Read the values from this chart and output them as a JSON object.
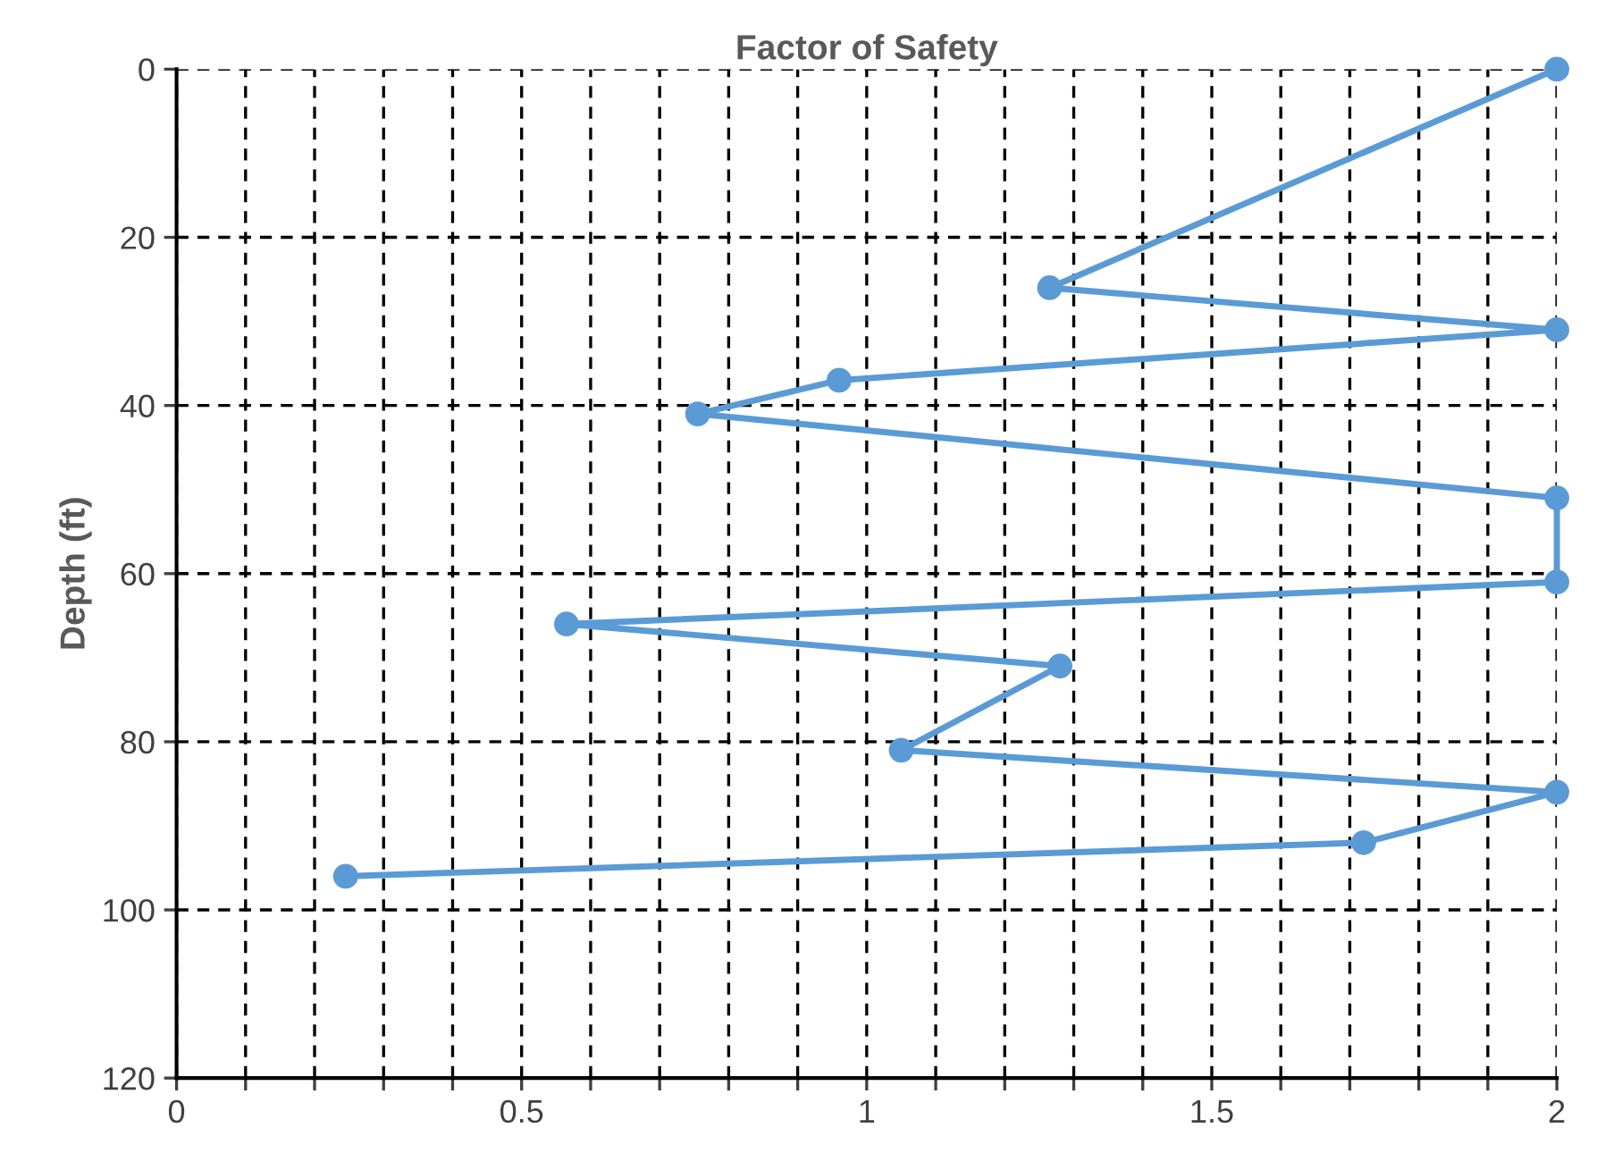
{
  "chart_data": {
    "type": "line",
    "title": "Factor of Safety",
    "ylabel": "Depth (ft)",
    "x": [
      2,
      1.265,
      2,
      0.96,
      0.755,
      2,
      2,
      0.565,
      1.28,
      1.05,
      2,
      1.72,
      0.245
    ],
    "series": [
      {
        "color": "#5b9bd5",
        "values": [
          0,
          26,
          31,
          37,
          41,
          51,
          61,
          66,
          71,
          81,
          86,
          92,
          96
        ]
      }
    ],
    "xlim": [
      0,
      2
    ],
    "ylim": [
      120,
      0
    ],
    "xticks": [
      0,
      {
        "value": 0.1,
        "label": null
      },
      {
        "value": 0.2,
        "label": null
      },
      {
        "value": 0.3,
        "label": null
      },
      {
        "value": 0.4,
        "label": null
      },
      0.5,
      {
        "value": 0.6,
        "label": null
      },
      {
        "value": 0.7,
        "label": null
      },
      {
        "value": 0.8,
        "label": null
      },
      {
        "value": 0.9,
        "label": null
      },
      1,
      {
        "value": 1.1,
        "label": null
      },
      {
        "value": 1.2,
        "label": null
      },
      {
        "value": 1.3,
        "label": null
      },
      {
        "value": 1.4,
        "label": null
      },
      1.5,
      {
        "value": 1.6,
        "label": null
      },
      {
        "value": 1.7,
        "label": null
      },
      {
        "value": 1.8,
        "label": null
      },
      {
        "value": 1.9,
        "label": null
      },
      2
    ],
    "yticks": [
      0,
      20,
      40,
      60,
      80,
      100,
      120
    ],
    "grid": true,
    "marker": "circle",
    "line_style": "solid",
    "legend": false
  }
}
